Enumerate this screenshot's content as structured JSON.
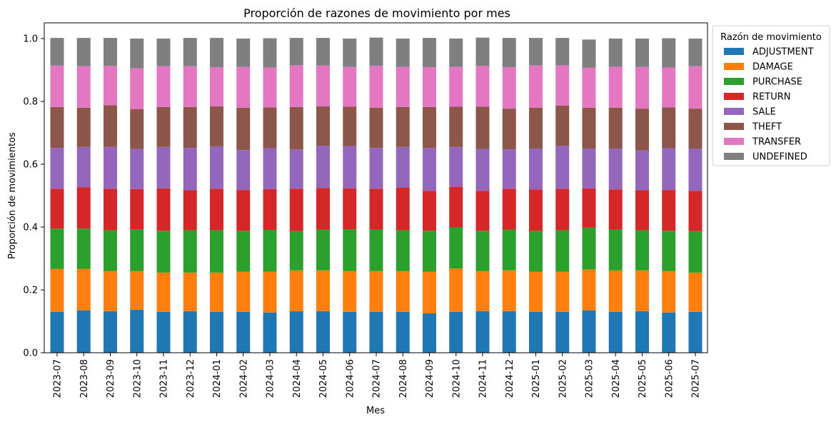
{
  "chart_data": {
    "type": "bar",
    "stacked": true,
    "title": "Proporción de razones de movimiento por mes",
    "xlabel": "Mes",
    "ylabel": "Proporción de movimientos",
    "ylim": [
      0,
      1.05
    ],
    "yticks": [
      "0.0",
      "0.2",
      "0.4",
      "0.6",
      "0.8",
      "1.0"
    ],
    "grid": false,
    "legend": {
      "title": "Razón de movimiento",
      "placement": "outside-top-right"
    },
    "categories": [
      "2023-07",
      "2023-08",
      "2023-09",
      "2023-10",
      "2023-11",
      "2023-12",
      "2024-01",
      "2024-02",
      "2024-03",
      "2024-04",
      "2024-05",
      "2024-06",
      "2024-07",
      "2024-08",
      "2024-09",
      "2024-10",
      "2024-11",
      "2024-12",
      "2025-01",
      "2025-02",
      "2025-03",
      "2025-04",
      "2025-05",
      "2025-06",
      "2025-07"
    ],
    "series": [
      {
        "name": "ADJUSTMENT",
        "color": "#1f77b4",
        "values": [
          0.13,
          0.135,
          0.132,
          0.137,
          0.13,
          0.132,
          0.13,
          0.13,
          0.128,
          0.132,
          0.132,
          0.13,
          0.13,
          0.13,
          0.125,
          0.13,
          0.132,
          0.132,
          0.13,
          0.13,
          0.135,
          0.13,
          0.132,
          0.128,
          0.13
        ]
      },
      {
        "name": "DAMAGE",
        "color": "#ff7f0e",
        "values": [
          0.137,
          0.132,
          0.128,
          0.123,
          0.125,
          0.123,
          0.125,
          0.128,
          0.13,
          0.13,
          0.13,
          0.13,
          0.13,
          0.13,
          0.133,
          0.138,
          0.128,
          0.13,
          0.128,
          0.128,
          0.13,
          0.132,
          0.13,
          0.132,
          0.125
        ]
      },
      {
        "name": "PURCHASE",
        "color": "#2ca02c",
        "values": [
          0.128,
          0.128,
          0.13,
          0.133,
          0.133,
          0.135,
          0.135,
          0.13,
          0.133,
          0.125,
          0.13,
          0.133,
          0.132,
          0.13,
          0.13,
          0.13,
          0.128,
          0.13,
          0.13,
          0.132,
          0.133,
          0.13,
          0.128,
          0.128,
          0.132
        ]
      },
      {
        "name": "RETURN",
        "color": "#d62728",
        "values": [
          0.127,
          0.132,
          0.132,
          0.128,
          0.135,
          0.127,
          0.132,
          0.13,
          0.13,
          0.135,
          0.132,
          0.13,
          0.13,
          0.135,
          0.127,
          0.13,
          0.127,
          0.13,
          0.132,
          0.132,
          0.125,
          0.128,
          0.127,
          0.13,
          0.128
        ]
      },
      {
        "name": "SALE",
        "color": "#9467bd",
        "values": [
          0.13,
          0.128,
          0.133,
          0.128,
          0.132,
          0.135,
          0.135,
          0.127,
          0.13,
          0.125,
          0.135,
          0.135,
          0.13,
          0.13,
          0.137,
          0.127,
          0.133,
          0.125,
          0.13,
          0.137,
          0.127,
          0.13,
          0.127,
          0.133,
          0.135
        ]
      },
      {
        "name": "THEFT",
        "color": "#8c564b",
        "values": [
          0.13,
          0.125,
          0.133,
          0.126,
          0.127,
          0.13,
          0.127,
          0.135,
          0.13,
          0.135,
          0.125,
          0.125,
          0.128,
          0.127,
          0.13,
          0.128,
          0.135,
          0.13,
          0.13,
          0.128,
          0.13,
          0.13,
          0.133,
          0.13,
          0.127
        ]
      },
      {
        "name": "TRANSFER",
        "color": "#e377c2",
        "values": [
          0.132,
          0.132,
          0.125,
          0.13,
          0.13,
          0.13,
          0.125,
          0.13,
          0.127,
          0.133,
          0.13,
          0.127,
          0.133,
          0.128,
          0.127,
          0.127,
          0.13,
          0.132,
          0.135,
          0.128,
          0.127,
          0.13,
          0.133,
          0.127,
          0.135
        ]
      },
      {
        "name": "UNDEFINED",
        "color": "#7f7f7f",
        "values": [
          0.088,
          0.09,
          0.089,
          0.095,
          0.088,
          0.09,
          0.093,
          0.09,
          0.093,
          0.087,
          0.088,
          0.09,
          0.09,
          0.09,
          0.093,
          0.09,
          0.09,
          0.093,
          0.087,
          0.087,
          0.09,
          0.09,
          0.09,
          0.093,
          0.088
        ]
      }
    ]
  }
}
